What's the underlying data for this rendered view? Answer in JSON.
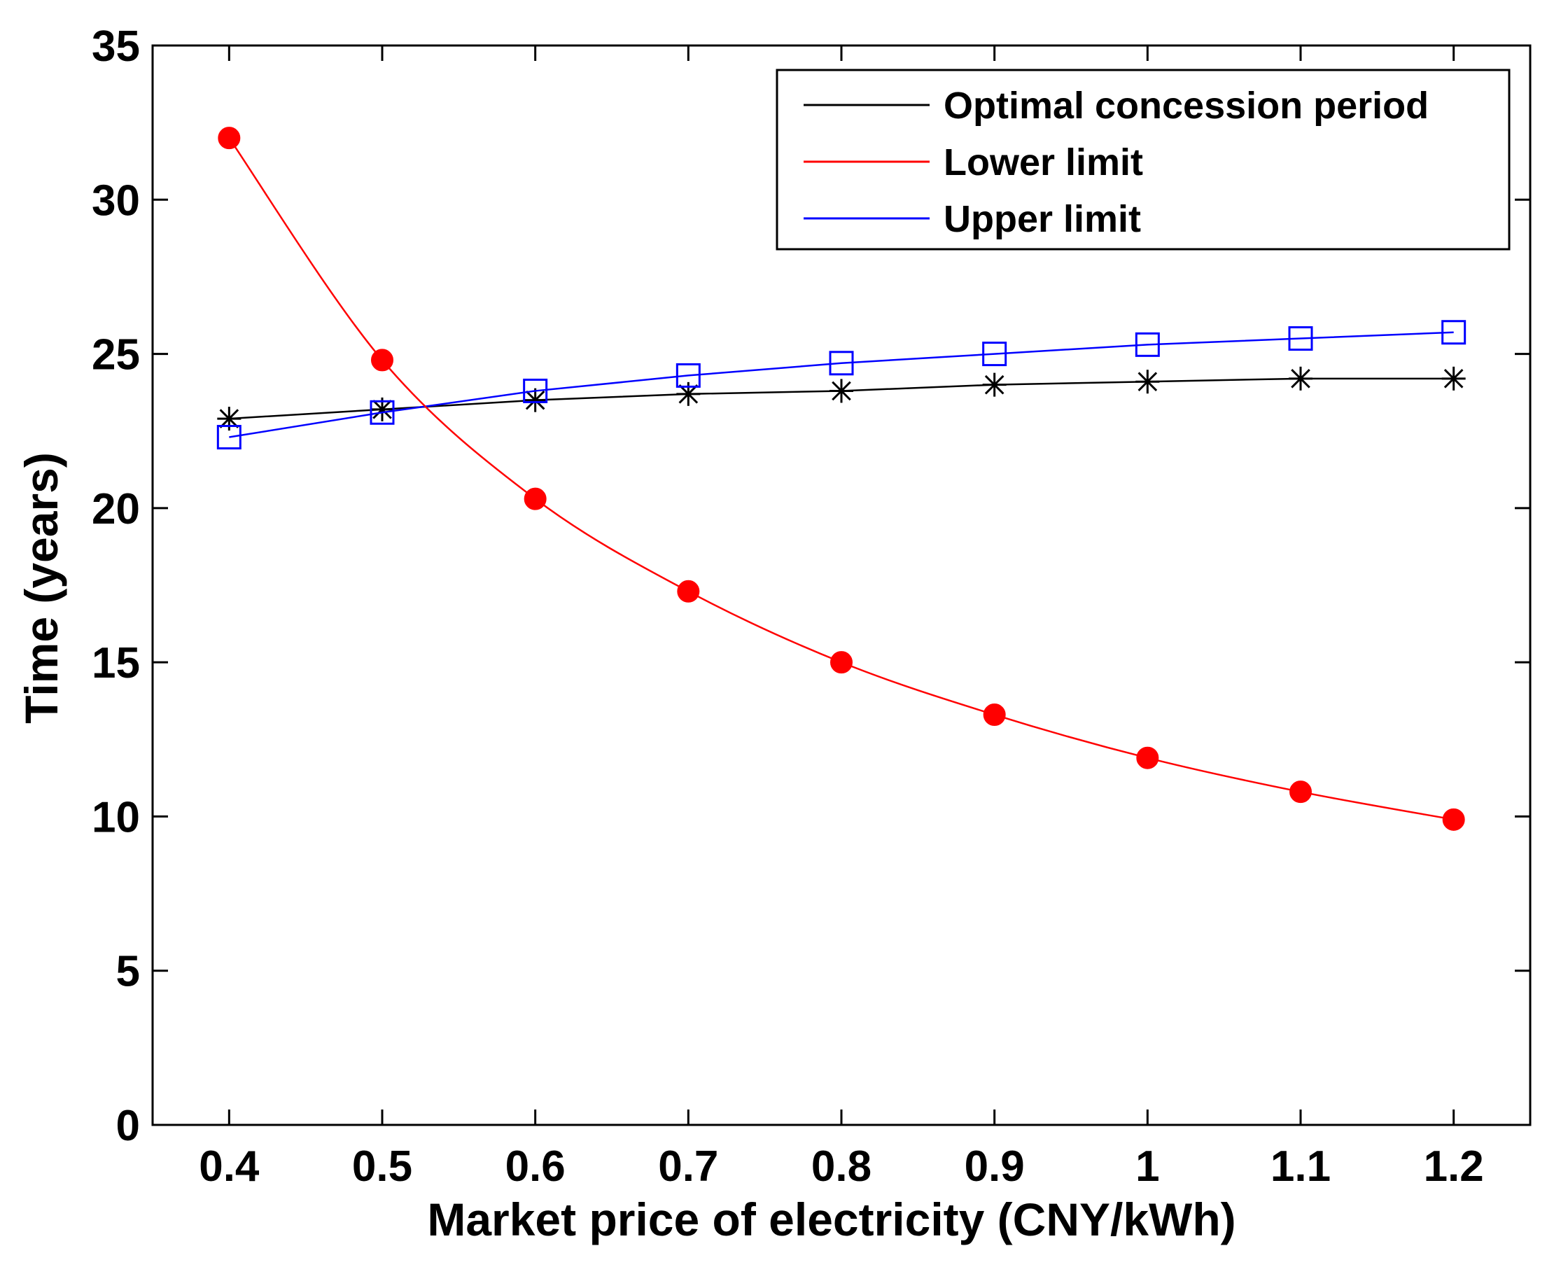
{
  "chart_data": {
    "type": "line",
    "title": "",
    "xlabel": "Market price of electricity (CNY/kWh)",
    "ylabel": "Time (years)",
    "xlim": [
      0.35,
      1.25
    ],
    "ylim": [
      0,
      35
    ],
    "xticks": [
      0.4,
      0.5,
      0.6,
      0.7,
      0.8,
      0.9,
      1,
      1.1,
      1.2
    ],
    "xtick_labels": [
      "0.4",
      "0.5",
      "0.6",
      "0.7",
      "0.8",
      "0.9",
      "1",
      "1.1",
      "1.2"
    ],
    "yticks": [
      0,
      5,
      10,
      15,
      20,
      25,
      30,
      35
    ],
    "ytick_labels": [
      "0",
      "5",
      "10",
      "15",
      "20",
      "25",
      "30",
      "35"
    ],
    "grid": false,
    "legend_position": "top-right",
    "x": [
      0.4,
      0.5,
      0.6,
      0.7,
      0.8,
      0.9,
      1.0,
      1.1,
      1.2
    ],
    "series": [
      {
        "name": "Optimal concession period",
        "color": "#000000",
        "marker": "asterisk",
        "values": [
          22.9,
          23.2,
          23.5,
          23.7,
          23.8,
          24.0,
          24.1,
          24.2,
          24.2
        ]
      },
      {
        "name": "Lower limit",
        "color": "#ff0000",
        "marker": "filled-circle",
        "values": [
          32.0,
          24.8,
          20.3,
          17.3,
          15.0,
          13.3,
          11.9,
          10.8,
          9.9
        ]
      },
      {
        "name": "Upper limit",
        "color": "#0000ff",
        "marker": "square",
        "values": [
          22.3,
          23.1,
          23.8,
          24.3,
          24.7,
          25.0,
          25.3,
          25.5,
          25.7
        ]
      }
    ]
  }
}
